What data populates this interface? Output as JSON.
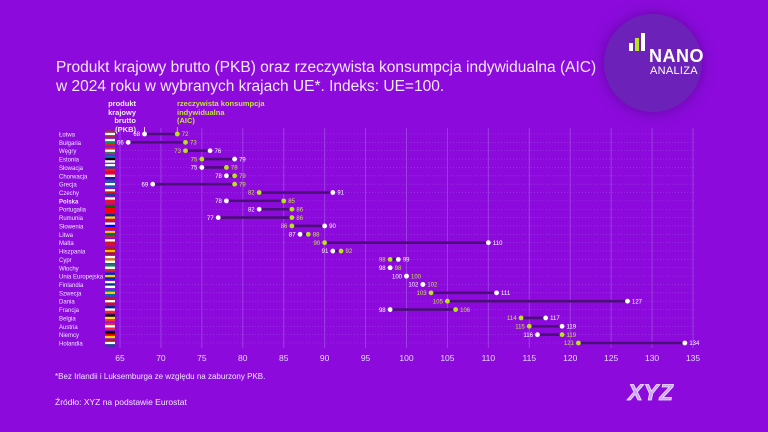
{
  "title_line1": "Produkt krajowy brutto (PKB) oraz rzeczywista konsumpcja indywidualna (AIC)",
  "title_line2": "w 2024 roku w wybranych krajach UE*. Indeks: UE=100.",
  "logo": {
    "line1": "NANO",
    "line2": "ANALIZA"
  },
  "brand": "XYZ",
  "footnote": "*Bez Irlandii i Luksemburga ze względu na zaburzony PKB.",
  "source": "Źródło: XYZ na podstawie Eurostat",
  "colors": {
    "background": "#8c0bdc",
    "gdp": "#ffffff",
    "aic": "#b8e41c",
    "connector": "#4b0f78",
    "grid": "#a552e6"
  },
  "chart_data": {
    "type": "dumbbell",
    "title": "Produkt krajowy brutto (PKB) oraz rzeczywista konsumpcja indywidualna (AIC) w 2024 roku w wybranych krajach UE*. Indeks: UE=100.",
    "xlim": [
      65,
      135
    ],
    "xticks": [
      65,
      70,
      75,
      80,
      85,
      90,
      95,
      100,
      105,
      110,
      115,
      120,
      125,
      130,
      135
    ],
    "grid": true,
    "legend": {
      "gdp": "produkt\nkrajowy brutto\n(PKB)",
      "aic": "rzeczywista konsumpcja\nindywidualna\n(AIC)",
      "placement": "top"
    },
    "categories": [
      "Łotwa",
      "Bułgaria",
      "Węgry",
      "Estonia",
      "Słowacja",
      "Chorwacja",
      "Grecja",
      "Czechy",
      "Polska",
      "Portugalia",
      "Rumunia",
      "Słowenia",
      "Litwa",
      "Malta",
      "Hiszpania",
      "Cypr",
      "Włochy",
      "Unia Europejska",
      "Finlandia",
      "Szwecja",
      "Dania",
      "Francja",
      "Belgia",
      "Austria",
      "Niemcy",
      "Holandia"
    ],
    "highlight": "Polska",
    "series": [
      {
        "name": "PKB",
        "values": [
          68,
          66,
          76,
          79,
          75,
          78,
          69,
          91,
          78,
          82,
          77,
          90,
          87,
          110,
          91,
          99,
          98,
          100,
          102,
          111,
          127,
          98,
          117,
          119,
          116,
          134
        ]
      },
      {
        "name": "AIC",
        "values": [
          72,
          73,
          73,
          75,
          78,
          79,
          79,
          82,
          85,
          86,
          86,
          86,
          88,
          90,
          92,
          98,
          98,
          100,
          102,
          103,
          105,
          106,
          114,
          115,
          119,
          121
        ]
      }
    ],
    "flags": [
      [
        "#9e3039",
        "#ffffff",
        "#9e3039"
      ],
      [
        "#ffffff",
        "#00966e",
        "#d62612"
      ],
      [
        "#ce2939",
        "#ffffff",
        "#477050"
      ],
      [
        "#0072ce",
        "#000000",
        "#ffffff"
      ],
      [
        "#ffffff",
        "#0b4ea2",
        "#ee1c25"
      ],
      [
        "#ff0000",
        "#ffffff",
        "#171796"
      ],
      [
        "#0d5eaf",
        "#ffffff",
        "#0d5eaf"
      ],
      [
        "#ffffff",
        "#d7141a",
        "#11457e"
      ],
      [
        "#ffffff",
        "#dc143c",
        "#dc143c"
      ],
      [
        "#006600",
        "#ff0000",
        "#ff0000"
      ],
      [
        "#002b7f",
        "#fcd116",
        "#ce1126"
      ],
      [
        "#ffffff",
        "#0000ff",
        "#ff0000"
      ],
      [
        "#fdb913",
        "#006a44",
        "#c1272d"
      ],
      [
        "#ffffff",
        "#cf142b",
        "#cf142b"
      ],
      [
        "#aa151b",
        "#f1bf00",
        "#aa151b"
      ],
      [
        "#ffffff",
        "#d47600",
        "#ffffff"
      ],
      [
        "#009246",
        "#ffffff",
        "#ce2b37"
      ],
      [
        "#003399",
        "#ffcc00",
        "#003399"
      ],
      [
        "#ffffff",
        "#003580",
        "#ffffff"
      ],
      [
        "#006aa7",
        "#fecc00",
        "#006aa7"
      ],
      [
        "#c8102e",
        "#ffffff",
        "#c8102e"
      ],
      [
        "#002395",
        "#ffffff",
        "#ed2939"
      ],
      [
        "#000000",
        "#fdda24",
        "#ef3340"
      ],
      [
        "#ed2939",
        "#ffffff",
        "#ed2939"
      ],
      [
        "#000000",
        "#dd0000",
        "#ffce00"
      ],
      [
        "#ae1c28",
        "#ffffff",
        "#21468b"
      ]
    ]
  }
}
